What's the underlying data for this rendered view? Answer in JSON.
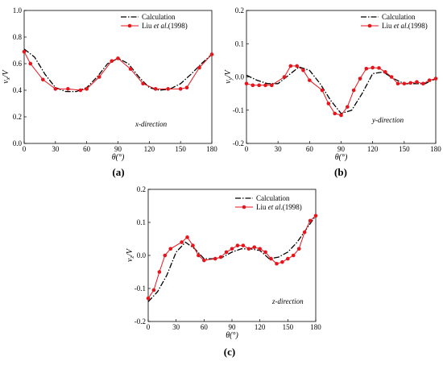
{
  "chart_data": [
    {
      "id": "a",
      "type": "line",
      "panel_label": "(a)",
      "xlabel": "θ(°)",
      "ylabel": "vx/V",
      "ylabel_main": "v",
      "ylabel_sub": "x",
      "ylabel_tail": "/V",
      "annotation": "x-direction",
      "xlim": [
        0,
        180
      ],
      "ylim": [
        0.0,
        1.0
      ],
      "xticks": [
        0,
        30,
        60,
        90,
        120,
        150,
        180
      ],
      "yticks": [
        0.0,
        0.2,
        0.4,
        0.6,
        0.8,
        1.0
      ],
      "ytick_labels": [
        "0.0",
        "0.2",
        "0.4",
        "0.6",
        "0.8",
        "1.0"
      ],
      "legend": {
        "position": "top-right",
        "entries": [
          {
            "series": "Calculation",
            "text": "Calculation"
          },
          {
            "series": "Liu",
            "text_pre": "Liu ",
            "text_ital": "et al",
            "text_post": ".(1998)"
          }
        ]
      },
      "series": [
        {
          "name": "Calculation",
          "style": "dashdot",
          "color": "#000000",
          "x": [
            0,
            10,
            20,
            30,
            40,
            50,
            60,
            70,
            80,
            90,
            100,
            110,
            120,
            130,
            140,
            150,
            160,
            170,
            180
          ],
          "y": [
            0.71,
            0.65,
            0.52,
            0.42,
            0.39,
            0.39,
            0.42,
            0.5,
            0.6,
            0.64,
            0.6,
            0.5,
            0.42,
            0.4,
            0.41,
            0.45,
            0.52,
            0.6,
            0.67
          ]
        },
        {
          "name": "Liu",
          "style": "solid-marker",
          "color": "#e8141b",
          "x": [
            0,
            6,
            18,
            30,
            42,
            54,
            60,
            72,
            84,
            90,
            102,
            114,
            126,
            138,
            150,
            156,
            168,
            180
          ],
          "y": [
            0.69,
            0.6,
            0.48,
            0.41,
            0.41,
            0.4,
            0.41,
            0.5,
            0.62,
            0.64,
            0.56,
            0.45,
            0.41,
            0.41,
            0.41,
            0.42,
            0.57,
            0.67
          ]
        }
      ]
    },
    {
      "id": "b",
      "type": "line",
      "panel_label": "(b)",
      "xlabel": "θ(°)",
      "ylabel": "vy/V",
      "ylabel_main": "v",
      "ylabel_sub": "y",
      "ylabel_tail": "/V",
      "annotation": "y-direction",
      "xlim": [
        0,
        180
      ],
      "ylim": [
        -0.2,
        0.2
      ],
      "xticks": [
        0,
        30,
        60,
        90,
        120,
        150,
        180
      ],
      "yticks": [
        -0.2,
        -0.1,
        0.0,
        0.1,
        0.2
      ],
      "ytick_labels": [
        "-0.2",
        "-0.1",
        "0.0",
        "0.1",
        "0.2"
      ],
      "legend": {
        "position": "top-right",
        "entries": [
          {
            "series": "Calculation",
            "text": "Calculation"
          },
          {
            "series": "Liu",
            "text_pre": "Liu ",
            "text_ital": "et al",
            "text_post": ".(1998)"
          }
        ]
      },
      "series": [
        {
          "name": "Calculation",
          "style": "dashdot",
          "color": "#000000",
          "x": [
            0,
            10,
            20,
            30,
            40,
            50,
            60,
            70,
            80,
            90,
            100,
            110,
            120,
            130,
            140,
            150,
            160,
            170,
            180
          ],
          "y": [
            0.005,
            -0.01,
            -0.02,
            -0.02,
            0.005,
            0.03,
            0.02,
            -0.02,
            -0.07,
            -0.11,
            -0.1,
            -0.05,
            0.01,
            0.015,
            -0.005,
            -0.02,
            -0.02,
            -0.02,
            -0.005
          ]
        },
        {
          "name": "Liu",
          "style": "solid-marker",
          "color": "#e8141b",
          "x": [
            0,
            6,
            12,
            18,
            24,
            36,
            42,
            48,
            54,
            60,
            72,
            78,
            84,
            90,
            96,
            102,
            108,
            114,
            120,
            126,
            132,
            138,
            144,
            150,
            156,
            162,
            168,
            174,
            180
          ],
          "y": [
            -0.02,
            -0.025,
            -0.025,
            -0.025,
            -0.025,
            0.0,
            0.033,
            0.033,
            0.02,
            -0.01,
            -0.04,
            -0.08,
            -0.11,
            -0.115,
            -0.09,
            -0.04,
            -0.005,
            0.025,
            0.028,
            0.027,
            0.015,
            0.0,
            -0.02,
            -0.02,
            -0.018,
            -0.015,
            -0.02,
            -0.01,
            -0.005
          ]
        }
      ]
    },
    {
      "id": "c",
      "type": "line",
      "panel_label": "(c)",
      "xlabel": "θ(°)",
      "ylabel": "vz/V",
      "ylabel_main": "v",
      "ylabel_sub": "z",
      "ylabel_tail": "/V",
      "annotation": "z-direction",
      "xlim": [
        0,
        180
      ],
      "ylim": [
        -0.2,
        0.2
      ],
      "xticks": [
        0,
        30,
        60,
        90,
        120,
        150,
        180
      ],
      "yticks": [
        -0.2,
        -0.1,
        0.0,
        0.1,
        0.2
      ],
      "ytick_labels": [
        "-0.2",
        "-0.1",
        "0.0",
        "0.1",
        "0.2"
      ],
      "legend": {
        "position": "top-right",
        "entries": [
          {
            "series": "Calculation",
            "text": "Calculation"
          },
          {
            "series": "Liu",
            "text_pre": "Liu ",
            "text_ital": "et al",
            "text_post": ".(1998)"
          }
        ]
      },
      "series": [
        {
          "name": "Calculation",
          "style": "dashdot",
          "color": "#000000",
          "x": [
            0,
            10,
            20,
            30,
            40,
            50,
            60,
            70,
            80,
            90,
            100,
            110,
            120,
            130,
            140,
            150,
            160,
            170,
            180
          ],
          "y": [
            -0.14,
            -0.11,
            -0.06,
            0.01,
            0.04,
            0.02,
            -0.01,
            -0.01,
            -0.005,
            0.01,
            0.02,
            0.02,
            0.015,
            -0.01,
            -0.005,
            0.01,
            0.04,
            0.08,
            0.12
          ]
        },
        {
          "name": "Liu",
          "style": "solid-marker",
          "color": "#e8141b",
          "x": [
            0,
            6,
            12,
            18,
            24,
            36,
            42,
            48,
            54,
            60,
            72,
            78,
            84,
            90,
            96,
            102,
            108,
            114,
            120,
            126,
            132,
            138,
            144,
            150,
            156,
            162,
            168,
            174,
            180
          ],
          "y": [
            -0.13,
            -0.105,
            -0.05,
            0.0,
            0.02,
            0.04,
            0.055,
            0.03,
            0.0,
            -0.015,
            -0.01,
            -0.005,
            0.01,
            0.02,
            0.03,
            0.03,
            0.02,
            0.025,
            0.02,
            0.01,
            -0.01,
            -0.025,
            -0.02,
            -0.01,
            0.0,
            0.02,
            0.07,
            0.105,
            0.12
          ]
        }
      ]
    }
  ]
}
